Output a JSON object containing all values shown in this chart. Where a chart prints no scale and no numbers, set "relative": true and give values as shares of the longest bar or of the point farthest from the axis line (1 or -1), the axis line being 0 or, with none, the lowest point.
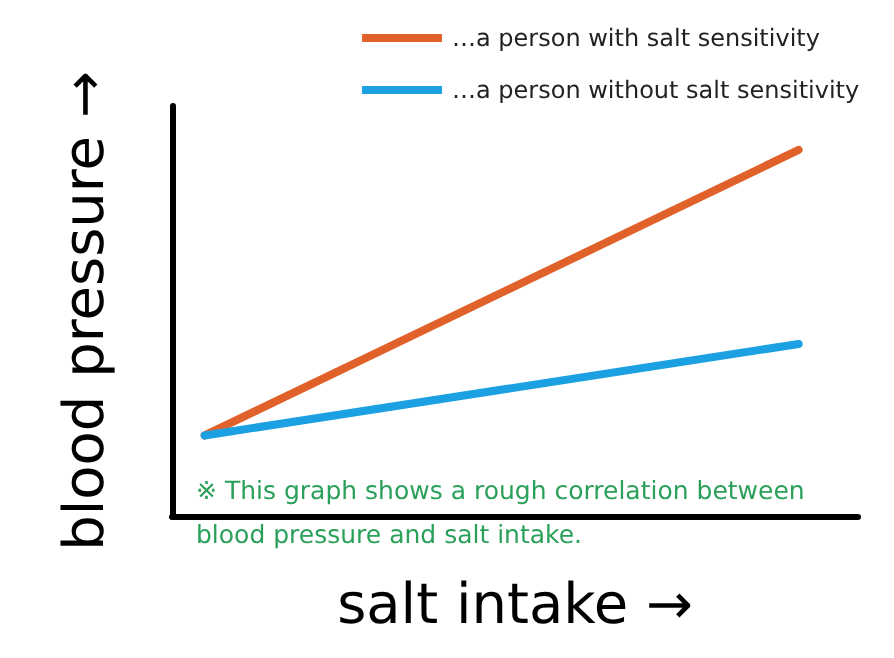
{
  "chart_data": {
    "type": "line",
    "relative": true,
    "categories": [
      null,
      null
    ],
    "xlabel": "salt intake →",
    "ylabel": "blood pressure →",
    "legend": "top",
    "grid": false,
    "marker": "none",
    "series": [
      {
        "name": "…a person with salt sensitivity",
        "color": "#e0622a",
        "values": [
          0.22,
          1
        ]
      },
      {
        "name": "…a person without salt sensitivity",
        "color": "#1ba1e2",
        "values": [
          0.22,
          0.47
        ]
      }
    ],
    "annotations": [
      "※ This graph shows a rough correlation between blood pressure and salt intake."
    ]
  }
}
